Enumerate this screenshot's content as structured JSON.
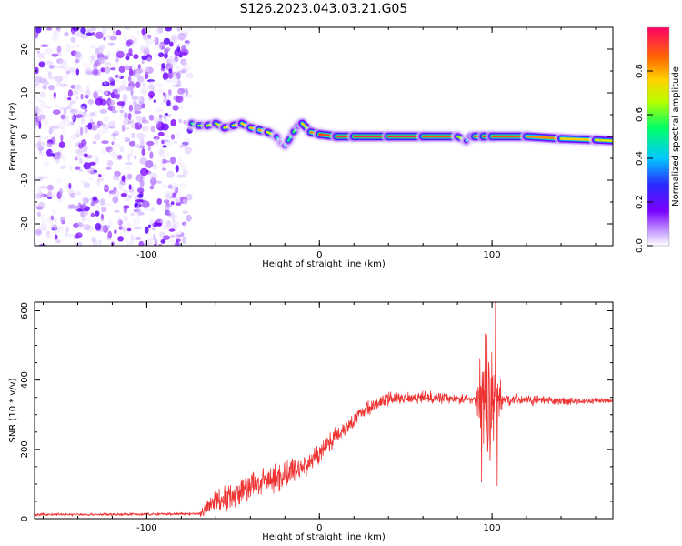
{
  "title": "S126.2023.043.03.21.G05",
  "chart_data": [
    {
      "type": "heatmap",
      "xlabel": "Height of straight line (km)",
      "ylabel": "Frequency (Hz)",
      "xlim": [
        -165,
        170
      ],
      "ylim": [
        -25,
        25
      ],
      "x_ticks": [
        -100,
        0,
        100
      ],
      "y_ticks": [
        -20,
        -10,
        0,
        10,
        20
      ],
      "colorbar": {
        "label": "Normalized spectral amplitude",
        "range": [
          0,
          1
        ],
        "ticks": [
          0.0,
          0.2,
          0.4,
          0.6,
          0.8
        ],
        "colormap": [
          "#ffffff",
          "#c9a6ff",
          "#7a00ff",
          "#2b2bff",
          "#00c8ff",
          "#00ff66",
          "#b8ff00",
          "#ffd200",
          "#ff6a00",
          "#ff0066"
        ]
      },
      "noise_region_x": [
        -165,
        -75
      ],
      "ridge": {
        "x": [
          -74,
          -70,
          -65,
          -60,
          -55,
          -50,
          -45,
          -40,
          -35,
          -30,
          -25,
          -22,
          -20,
          -18,
          -15,
          -12,
          -10,
          -5,
          0,
          10,
          20,
          40,
          60,
          80,
          85,
          88,
          90,
          95,
          100,
          120,
          140,
          160,
          170
        ],
        "freq": [
          3,
          2.5,
          2.5,
          3,
          2,
          2.5,
          3,
          2,
          1.5,
          1,
          0,
          -1.5,
          -2,
          -1,
          1,
          2.5,
          3,
          1,
          0.5,
          0,
          0,
          0,
          0,
          0,
          -1,
          0,
          0,
          0,
          0,
          0,
          -0.5,
          -0.8,
          -1
        ],
        "amplitude": [
          0.5,
          0.6,
          0.65,
          0.7,
          0.7,
          0.75,
          0.7,
          0.8,
          0.8,
          0.85,
          0.55,
          0.4,
          0.45,
          0.5,
          0.55,
          0.6,
          0.7,
          0.8,
          0.9,
          0.95,
          0.95,
          0.95,
          0.95,
          0.9,
          0.4,
          0.5,
          0.9,
          0.95,
          0.95,
          0.9,
          0.8,
          0.75,
          0.7
        ]
      }
    },
    {
      "type": "line",
      "xlabel": "Height of straight line (km)",
      "ylabel": "SNR (10 * v/v)",
      "xlim": [
        -165,
        170
      ],
      "ylim": [
        0,
        625
      ],
      "x_ticks": [
        -100,
        0,
        100
      ],
      "y_ticks": [
        0,
        200,
        400,
        600
      ],
      "color": "#ee3333",
      "trend": {
        "x": [
          -165,
          -120,
          -70,
          -66,
          -62,
          -55,
          -50,
          -45,
          -40,
          -35,
          -30,
          -25,
          -20,
          -15,
          -10,
          -5,
          0,
          5,
          10,
          15,
          20,
          25,
          30,
          40,
          50,
          60,
          70,
          80,
          85,
          90,
          95,
          100,
          105,
          110,
          120,
          130,
          140,
          150,
          160,
          170
        ],
        "y": [
          12,
          12,
          14,
          22,
          45,
          60,
          70,
          80,
          95,
          100,
          110,
          115,
          125,
          140,
          150,
          165,
          190,
          220,
          240,
          265,
          285,
          310,
          325,
          345,
          350,
          350,
          350,
          345,
          345,
          345,
          350,
          340,
          345,
          345,
          342,
          340,
          340,
          338,
          340,
          340
        ]
      },
      "noise_amplitude": {
        "x": [
          -165,
          -70,
          -65,
          -10,
          0,
          30,
          90,
          93,
          97,
          100,
          103,
          106,
          170
        ],
        "y": [
          5,
          5,
          45,
          50,
          35,
          25,
          15,
          160,
          200,
          200,
          140,
          20,
          8
        ]
      },
      "peaks": [
        {
          "x": 97,
          "y": 530
        },
        {
          "x": 102,
          "y": 625
        },
        {
          "x": 94,
          "y": 105
        },
        {
          "x": 103,
          "y": 95
        }
      ]
    }
  ]
}
